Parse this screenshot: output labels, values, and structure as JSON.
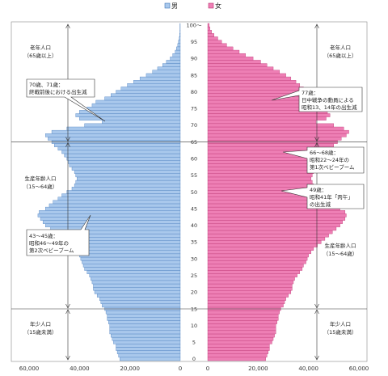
{
  "chart_data": {
    "type": "bar",
    "subtype": "population-pyramid",
    "legend": {
      "male": "男",
      "female": "女",
      "placement": "top-center"
    },
    "colors": {
      "male": "#a9c8ec",
      "male_edge": "#3f75b8",
      "female": "#ee7fb5",
      "female_edge": "#b8306e"
    },
    "x_ticks": [
      "80,000",
      "60,000",
      "40,000",
      "20,000",
      "0",
      "20,000",
      "40,000",
      "60,000",
      "80,000"
    ],
    "xlim": [
      -80000,
      80000
    ],
    "age_ticks": [
      "0",
      "5",
      "10",
      "15",
      "20",
      "25",
      "30",
      "35",
      "40",
      "45",
      "50",
      "55",
      "60",
      "65",
      "70",
      "75",
      "80",
      "85",
      "90",
      "95",
      "100～"
    ],
    "ages": [
      0,
      1,
      2,
      3,
      4,
      5,
      6,
      7,
      8,
      9,
      10,
      11,
      12,
      13,
      14,
      15,
      16,
      17,
      18,
      19,
      20,
      21,
      22,
      23,
      24,
      25,
      26,
      27,
      28,
      29,
      30,
      31,
      32,
      33,
      34,
      35,
      36,
      37,
      38,
      39,
      40,
      41,
      42,
      43,
      44,
      45,
      46,
      47,
      48,
      49,
      50,
      51,
      52,
      53,
      54,
      55,
      56,
      57,
      58,
      59,
      60,
      61,
      62,
      63,
      64,
      65,
      66,
      67,
      68,
      69,
      70,
      71,
      72,
      73,
      74,
      75,
      76,
      77,
      78,
      79,
      80,
      81,
      82,
      83,
      84,
      85,
      86,
      87,
      88,
      89,
      90,
      91,
      92,
      93,
      94,
      95,
      96,
      97,
      98,
      99,
      100
    ],
    "male": [
      24000,
      24500,
      25000,
      25500,
      25500,
      26500,
      27000,
      27500,
      28000,
      28000,
      28000,
      28500,
      29000,
      29000,
      29500,
      30000,
      31000,
      31500,
      32000,
      33000,
      34000,
      34500,
      34500,
      35000,
      35500,
      36000,
      37000,
      38000,
      38500,
      39000,
      39500,
      40000,
      41000,
      42000,
      43500,
      45000,
      46500,
      48000,
      50000,
      51500,
      53500,
      54500,
      55500,
      56500,
      56000,
      53500,
      52000,
      50500,
      48500,
      47000,
      45000,
      43000,
      42000,
      41500,
      41000,
      41500,
      42000,
      43000,
      44000,
      44500,
      45000,
      46000,
      47000,
      48500,
      50000,
      51000,
      52500,
      53500,
      51000,
      45000,
      38000,
      31000,
      40000,
      41500,
      40000,
      37000,
      35000,
      33500,
      30000,
      27500,
      25500,
      23500,
      21000,
      18500,
      16000,
      13500,
      11000,
      9000,
      7000,
      5500,
      4000,
      3000,
      2000,
      1500,
      1000,
      700,
      400,
      250,
      150,
      100,
      80
    ],
    "female": [
      23000,
      23500,
      24000,
      24500,
      24500,
      25500,
      26000,
      26500,
      27000,
      27000,
      27000,
      27500,
      28000,
      28000,
      28500,
      29000,
      30000,
      30500,
      31000,
      32000,
      33000,
      33500,
      33500,
      34000,
      34500,
      35500,
      36500,
      37500,
      38000,
      39000,
      39500,
      40000,
      41000,
      42000,
      43500,
      45000,
      46500,
      48000,
      49500,
      51000,
      52500,
      53500,
      54500,
      55000,
      54500,
      52500,
      51000,
      50000,
      48000,
      47000,
      40000,
      42500,
      42000,
      41500,
      41000,
      41500,
      42000,
      43000,
      44000,
      44500,
      45000,
      46000,
      47000,
      48500,
      50000,
      51500,
      53000,
      55000,
      56000,
      54000,
      50000,
      43000,
      47000,
      48500,
      47500,
      46000,
      45000,
      40000,
      42000,
      41000,
      39500,
      38000,
      36500,
      35000,
      33000,
      31000,
      28500,
      26000,
      23500,
      21000,
      18000,
      15000,
      12500,
      10000,
      7500,
      5500,
      4000,
      2500,
      1500,
      900,
      600
    ],
    "group_dividers": [
      14.5,
      64.5
    ],
    "annotations": {
      "left_elderly": [
        "老年人口",
        "（65歳以上）"
      ],
      "left_working": [
        "生産年齢人口",
        "（15～64歳）"
      ],
      "left_young": [
        "年少人口",
        "（15歳未満）"
      ],
      "right_elderly": [
        "老年人口",
        "（65歳以上）"
      ],
      "right_working": [
        "生産年齢人口",
        "（15～64歳）"
      ],
      "right_young": [
        "年少人口",
        "（15歳未満）"
      ],
      "c70": [
        "70歳、71歳：",
        "終戦前後における出生減"
      ],
      "c77": [
        "77歳：",
        "日中戦争の動員による",
        "昭和13、14年の出生減"
      ],
      "c66": [
        "66～68歳：",
        "昭和22～24年の",
        "第1次ベビーブーム"
      ],
      "c49": [
        "49歳：",
        "昭和41年「丙午」",
        "の出生減"
      ],
      "c43": [
        "43～45歳：",
        "昭和46～49年の",
        "第2次ベビーブーム"
      ]
    }
  }
}
